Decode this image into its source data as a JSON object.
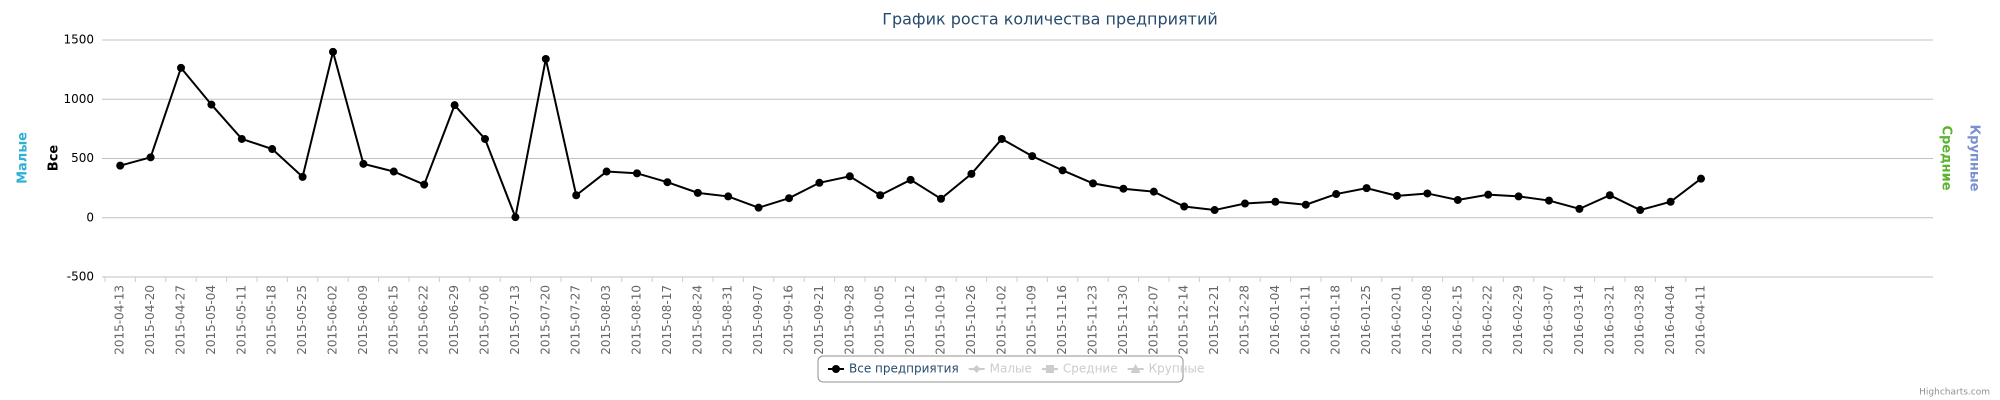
{
  "chart_data": {
    "type": "line",
    "title": "График роста количества предприятий",
    "left_axis_titles": [
      {
        "text": "Малые",
        "color": "#2fb0d4"
      },
      {
        "text": "Все",
        "color": "#000000"
      }
    ],
    "right_axis_titles": [
      {
        "text": "Средние",
        "color": "#5ab42c"
      },
      {
        "text": "Крупные",
        "color": "#7c8fd0"
      }
    ],
    "categories": [
      "2015-04-13",
      "2015-04-20",
      "2015-04-27",
      "2015-05-04",
      "2015-05-11",
      "2015-05-18",
      "2015-05-25",
      "2015-06-02",
      "2015-06-09",
      "2015-06-15",
      "2015-06-22",
      "2015-06-29",
      "2015-07-06",
      "2015-07-13",
      "2015-07-20",
      "2015-07-27",
      "2015-08-03",
      "2015-08-10",
      "2015-08-17",
      "2015-08-24",
      "2015-08-31",
      "2015-09-07",
      "2015-09-16",
      "2015-09-21",
      "2015-09-28",
      "2015-10-05",
      "2015-10-12",
      "2015-10-19",
      "2015-10-26",
      "2015-11-02",
      "2015-11-09",
      "2015-11-16",
      "2015-11-23",
      "2015-11-30",
      "2015-12-07",
      "2015-12-14",
      "2015-12-21",
      "2015-12-28",
      "2016-01-04",
      "2016-01-11",
      "2016-01-18",
      "2016-01-25",
      "2016-02-01",
      "2016-02-08",
      "2016-02-15",
      "2016-02-22",
      "2016-02-29",
      "2016-03-07",
      "2016-03-14",
      "2016-03-21",
      "2016-03-28",
      "2016-04-04",
      "2016-04-11"
    ],
    "series": [
      {
        "name": "Все предприятия",
        "color": "#000000",
        "values": [
          440,
          510,
          1265,
          955,
          665,
          580,
          345,
          1400,
          455,
          390,
          280,
          950,
          665,
          5,
          1340,
          190,
          390,
          375,
          300,
          210,
          180,
          85,
          165,
          295,
          350,
          190,
          320,
          160,
          370,
          665,
          520,
          400,
          290,
          245,
          220,
          95,
          65,
          120,
          135,
          110,
          200,
          250,
          185,
          205,
          150,
          195,
          180,
          145,
          75,
          190,
          65,
          135,
          330
        ]
      }
    ],
    "hidden_series": [
      {
        "name": "Малые",
        "marker": "diamond"
      },
      {
        "name": "Средние",
        "marker": "square"
      },
      {
        "name": "Крупные",
        "marker": "triangle"
      }
    ],
    "ylim": [
      -500,
      1500
    ],
    "yticks": [
      -500,
      0,
      500,
      1000,
      1500
    ],
    "grid": true,
    "credits": "Highcharts.com"
  }
}
